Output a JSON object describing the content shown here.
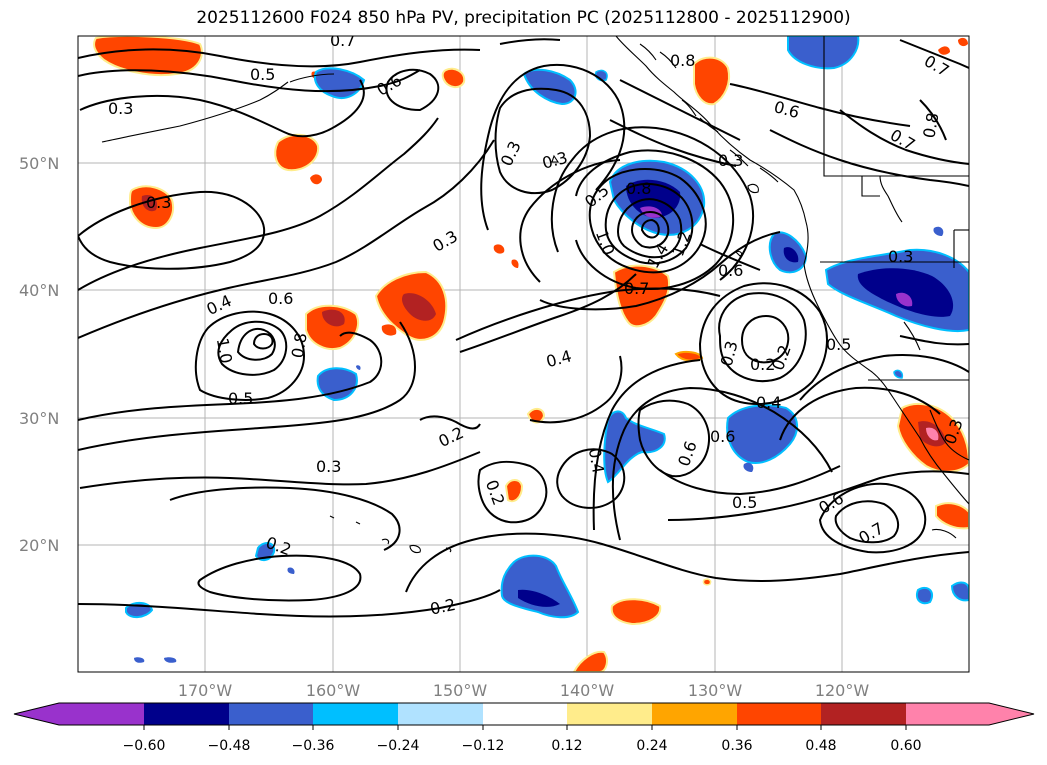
{
  "title": "2025112600 F024 850 hPa PV, precipitation PC (2025112800 - 2025112900)",
  "map": {
    "latitude_labels": [
      "50°N",
      "40°N",
      "30°N",
      "20°N"
    ],
    "longitude_labels": [
      "170°W",
      "160°W",
      "150°W",
      "140°W",
      "130°W",
      "120°W"
    ]
  },
  "contour_labels": [
    {
      "text": "0.7"
    },
    {
      "text": "0.5"
    },
    {
      "text": "0.3"
    },
    {
      "text": "0.6"
    },
    {
      "text": "0.3"
    },
    {
      "text": "0.3"
    },
    {
      "text": "0.4"
    },
    {
      "text": "0.6"
    },
    {
      "text": "1.0"
    },
    {
      "text": "0.8"
    },
    {
      "text": "0.5"
    },
    {
      "text": "0.3"
    },
    {
      "text": "0.2"
    },
    {
      "text": "0.3"
    },
    {
      "text": "0.2"
    },
    {
      "text": "0.2"
    },
    {
      "text": "0.2"
    },
    {
      "text": "0.3"
    },
    {
      "text": "0.5"
    },
    {
      "text": "0.8"
    },
    {
      "text": "1.0"
    },
    {
      "text": "1.4"
    },
    {
      "text": "1.2"
    },
    {
      "text": "0.6"
    },
    {
      "text": "0.7"
    },
    {
      "text": "0.4"
    },
    {
      "text": "0.4"
    },
    {
      "text": "0.6"
    },
    {
      "text": "0.2"
    },
    {
      "text": "0.3"
    },
    {
      "text": "0.2"
    },
    {
      "text": "0.4"
    },
    {
      "text": "0.6"
    },
    {
      "text": "0.5"
    },
    {
      "text": "0.6"
    },
    {
      "text": "0.7"
    },
    {
      "text": "0.8"
    },
    {
      "text": "0.6"
    },
    {
      "text": "0.3"
    },
    {
      "text": "0.7"
    },
    {
      "text": "0.8"
    },
    {
      "text": "0.7"
    },
    {
      "text": "0.3"
    },
    {
      "text": "0.5"
    },
    {
      "text": "0.3"
    }
  ],
  "colorbar": {
    "colors": [
      "#9932cc",
      "#00008b",
      "#3a5fcd",
      "#00bfff",
      "#b0e2ff",
      "#ffffff",
      "#ffec8b",
      "#ffa500",
      "#ff4500",
      "#b22222",
      "#ff82ab"
    ],
    "tick_labels": [
      "−0.60",
      "−0.48",
      "−0.36",
      "−0.24",
      "−0.12",
      "0.12",
      "0.24",
      "0.36",
      "0.48",
      "0.60"
    ]
  }
}
